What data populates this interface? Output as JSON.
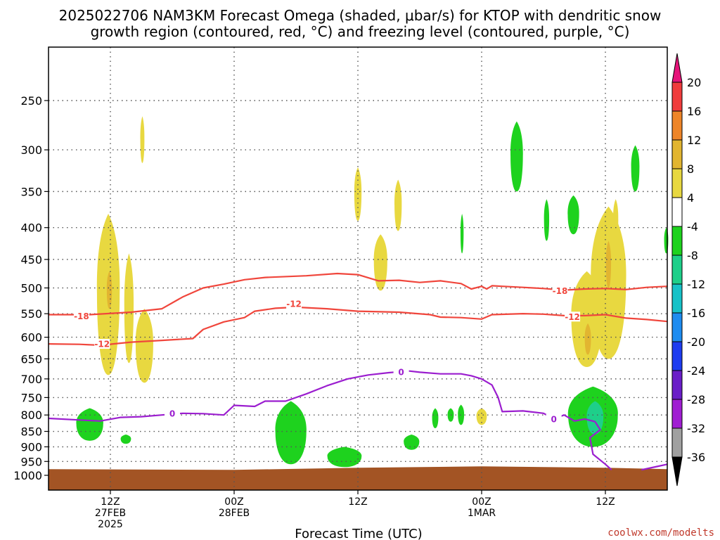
{
  "chart_data": {
    "type": "heatmap",
    "title_line1": "2025022706 NAM3KM Forecast Omega (shaded, μbar/s) for KTOP with dendritic snow",
    "title_line2": "growth region (contoured, red, °C) and freezing level (contoured, purple, °C)",
    "xlabel": "Forecast Time (UTC)",
    "credit": "coolwx.com/modelts",
    "x_range_hours": [
      0,
      60
    ],
    "y_scale": "log",
    "y_range_hPa": [
      1000,
      200
    ],
    "y_ticks": [
      250,
      300,
      350,
      400,
      450,
      500,
      550,
      600,
      650,
      700,
      750,
      800,
      850,
      900,
      950,
      1000
    ],
    "x_ticks": [
      {
        "hour": 6,
        "line1": "12Z",
        "line2": "27FEB",
        "line3": "2025"
      },
      {
        "hour": 18,
        "line1": "00Z",
        "line2": "28FEB",
        "line3": ""
      },
      {
        "hour": 30,
        "line1": "12Z",
        "line2": "",
        "line3": ""
      },
      {
        "hour": 42,
        "line1": "00Z",
        "line2": "1MAR",
        "line3": ""
      },
      {
        "hour": 54,
        "line1": "12Z",
        "line2": "",
        "line3": ""
      }
    ],
    "colorbar": {
      "labels": [
        "20",
        "16",
        "12",
        "8",
        "4",
        "-4",
        "-8",
        "-12",
        "-16",
        "-20",
        "-24",
        "-28",
        "-32",
        "-36"
      ],
      "bands": [
        {
          "lo": 16,
          "hi": 20,
          "color": "#f03c3c"
        },
        {
          "lo": 12,
          "hi": 16,
          "color": "#ee8528"
        },
        {
          "lo": 8,
          "hi": 12,
          "color": "#e2b530"
        },
        {
          "lo": 4,
          "hi": 8,
          "color": "#e8d840"
        },
        {
          "lo": -4,
          "hi": 4,
          "color": "#ffffff"
        },
        {
          "lo": -8,
          "hi": -4,
          "color": "#1ed21e"
        },
        {
          "lo": -12,
          "hi": -8,
          "color": "#1ecf8a"
        },
        {
          "lo": -16,
          "hi": -12,
          "color": "#17c2c8"
        },
        {
          "lo": -20,
          "hi": -16,
          "color": "#1e8cf0"
        },
        {
          "lo": -24,
          "hi": -20,
          "color": "#1e3cf0"
        },
        {
          "lo": -28,
          "hi": -24,
          "color": "#6a1ec8"
        },
        {
          "lo": -32,
          "hi": -28,
          "color": "#a01ed2"
        },
        {
          "lo": -36,
          "hi": -32,
          "color": "#a0a0a0"
        }
      ],
      "top_arrow_color": "#e6147a",
      "bottom_arrow_color": "#000000"
    },
    "omega_regions": [
      {
        "value": 6,
        "hour": 5.8,
        "p_top": 380,
        "p_bot": 690,
        "width_h": 2.2
      },
      {
        "value": 10,
        "hour": 5.9,
        "p_top": 470,
        "p_bot": 540,
        "width_h": 0.5
      },
      {
        "value": 6,
        "hour": 7.8,
        "p_top": 440,
        "p_bot": 660,
        "width_h": 0.9
      },
      {
        "value": 6,
        "hour": 9.3,
        "p_top": 540,
        "p_bot": 710,
        "width_h": 1.7
      },
      {
        "value": 6,
        "hour": 9.1,
        "p_top": 265,
        "p_bot": 315,
        "width_h": 0.4
      },
      {
        "value": 6,
        "hour": 30.0,
        "p_top": 320,
        "p_bot": 390,
        "width_h": 0.7
      },
      {
        "value": 6,
        "hour": 33.9,
        "p_top": 335,
        "p_bot": 405,
        "width_h": 0.7
      },
      {
        "value": 6,
        "hour": 32.2,
        "p_top": 410,
        "p_bot": 505,
        "width_h": 1.3
      },
      {
        "value": 6,
        "hour": 42.0,
        "p_top": 780,
        "p_bot": 830,
        "width_h": 1.0
      },
      {
        "value": 6,
        "hour": 52.2,
        "p_top": 470,
        "p_bot": 670,
        "width_h": 3.0
      },
      {
        "value": 10,
        "hour": 52.3,
        "p_top": 570,
        "p_bot": 640,
        "width_h": 0.6
      },
      {
        "value": 6,
        "hour": 54.3,
        "p_top": 370,
        "p_bot": 650,
        "width_h": 3.4
      },
      {
        "value": 10,
        "hour": 54.3,
        "p_top": 420,
        "p_bot": 500,
        "width_h": 0.5
      },
      {
        "value": 6,
        "hour": 55.0,
        "p_top": 360,
        "p_bot": 420,
        "width_h": 0.5
      },
      {
        "value": -6,
        "hour": 4.0,
        "p_top": 780,
        "p_bot": 880,
        "width_h": 2.6
      },
      {
        "value": -6,
        "hour": 7.5,
        "p_top": 860,
        "p_bot": 890,
        "width_h": 1.0
      },
      {
        "value": -6,
        "hour": 23.5,
        "p_top": 760,
        "p_bot": 960,
        "width_h": 3.0
      },
      {
        "value": -6,
        "hour": 28.7,
        "p_top": 900,
        "p_bot": 970,
        "width_h": 3.3
      },
      {
        "value": -6,
        "hour": 35.2,
        "p_top": 860,
        "p_bot": 910,
        "width_h": 1.5
      },
      {
        "value": -6,
        "hour": 37.5,
        "p_top": 780,
        "p_bot": 840,
        "width_h": 0.6
      },
      {
        "value": -6,
        "hour": 39.0,
        "p_top": 780,
        "p_bot": 820,
        "width_h": 0.6
      },
      {
        "value": -6,
        "hour": 40.0,
        "p_top": 770,
        "p_bot": 830,
        "width_h": 0.6
      },
      {
        "value": -6,
        "hour": 52.8,
        "p_top": 720,
        "p_bot": 900,
        "width_h": 4.8
      },
      {
        "value": -10,
        "hour": 53.0,
        "p_top": 760,
        "p_bot": 860,
        "width_h": 1.6
      },
      {
        "value": -6,
        "hour": 45.4,
        "p_top": 270,
        "p_bot": 350,
        "width_h": 1.2
      },
      {
        "value": -6,
        "hour": 48.3,
        "p_top": 360,
        "p_bot": 420,
        "width_h": 0.5
      },
      {
        "value": -6,
        "hour": 50.9,
        "p_top": 355,
        "p_bot": 410,
        "width_h": 1.1
      },
      {
        "value": -6,
        "hour": 56.9,
        "p_top": 295,
        "p_bot": 350,
        "width_h": 0.8
      },
      {
        "value": -6,
        "hour": 40.1,
        "p_top": 380,
        "p_bot": 440,
        "width_h": 0.3
      },
      {
        "value": -6,
        "hour": 59.9,
        "p_top": 400,
        "p_bot": 440,
        "width_h": 0.4
      }
    ],
    "contours": [
      {
        "name": "-18",
        "color": "#f0463c",
        "labels": [
          {
            "hour": 3.2,
            "p": 555
          },
          {
            "hour": 49.6,
            "p": 505
          }
        ],
        "points": [
          [
            0,
            552
          ],
          [
            4,
            552
          ],
          [
            8,
            547
          ],
          [
            11,
            540
          ],
          [
            13,
            517
          ],
          [
            15,
            500
          ],
          [
            17,
            493
          ],
          [
            19,
            485
          ],
          [
            21,
            481
          ],
          [
            25,
            478
          ],
          [
            28,
            474
          ],
          [
            30,
            476
          ],
          [
            32,
            487
          ],
          [
            34,
            486
          ],
          [
            36,
            490
          ],
          [
            38,
            487
          ],
          [
            40,
            492
          ],
          [
            41,
            502
          ],
          [
            42,
            497
          ],
          [
            42.5,
            502
          ],
          [
            43,
            496
          ],
          [
            44,
            497
          ],
          [
            46,
            499
          ],
          [
            48,
            501
          ],
          [
            50,
            504
          ],
          [
            52,
            502
          ],
          [
            54,
            501
          ],
          [
            56,
            503
          ],
          [
            58,
            499
          ],
          [
            60,
            497
          ]
        ]
      },
      {
        "name": "-12",
        "color": "#f0463c",
        "labels": [
          {
            "hour": 5.2,
            "p": 615
          },
          {
            "hour": 23.8,
            "p": 530
          },
          {
            "hour": 50.8,
            "p": 556
          }
        ],
        "points": [
          [
            0,
            615
          ],
          [
            3,
            616
          ],
          [
            5,
            618
          ],
          [
            8,
            611
          ],
          [
            11,
            607
          ],
          [
            14,
            603
          ],
          [
            15,
            583
          ],
          [
            17,
            567
          ],
          [
            19,
            558
          ],
          [
            20,
            545
          ],
          [
            22,
            539
          ],
          [
            24,
            537
          ],
          [
            27,
            540
          ],
          [
            30,
            545
          ],
          [
            34,
            547
          ],
          [
            37,
            552
          ],
          [
            38,
            557
          ],
          [
            40,
            558
          ],
          [
            42,
            561
          ],
          [
            43,
            552
          ],
          [
            46,
            550
          ],
          [
            48,
            551
          ],
          [
            50,
            554
          ],
          [
            52,
            554
          ],
          [
            54,
            552
          ],
          [
            56,
            559
          ],
          [
            58,
            562
          ],
          [
            60,
            566
          ]
        ]
      },
      {
        "name": "0",
        "color": "#9b1ecf",
        "labels": [
          {
            "hour": 12.0,
            "p": 795
          },
          {
            "hour": 34.2,
            "p": 682
          },
          {
            "hour": 49.0,
            "p": 812
          }
        ],
        "points": [
          [
            0,
            810
          ],
          [
            3,
            815
          ],
          [
            5,
            818
          ],
          [
            7,
            807
          ],
          [
            9,
            805
          ],
          [
            11,
            800
          ],
          [
            13,
            795
          ],
          [
            15,
            796
          ],
          [
            17,
            800
          ],
          [
            18,
            772
          ],
          [
            20,
            775
          ],
          [
            21,
            760
          ],
          [
            23,
            760
          ],
          [
            25,
            740
          ],
          [
            27,
            718
          ],
          [
            29,
            700
          ],
          [
            31,
            690
          ],
          [
            33,
            684
          ],
          [
            35,
            680
          ],
          [
            36,
            683
          ],
          [
            38,
            687
          ],
          [
            40,
            687
          ],
          [
            41,
            692
          ],
          [
            42,
            700
          ],
          [
            43,
            716
          ],
          [
            43.6,
            750
          ],
          [
            44,
            790
          ],
          [
            46,
            788
          ],
          [
            48,
            795
          ],
          [
            49,
            812
          ],
          [
            50,
            800
          ],
          [
            51,
            818
          ],
          [
            52,
            812
          ],
          [
            53,
            820
          ],
          [
            53.5,
            845
          ],
          [
            52.5,
            870
          ],
          [
            52.8,
            925
          ],
          [
            54,
            960
          ],
          [
            54.6,
            980
          ]
        ]
      },
      {
        "name": "0b",
        "color": "#9b1ecf",
        "labels": [],
        "points": [
          [
            57.5,
            980
          ],
          [
            59,
            968
          ],
          [
            60,
            960
          ]
        ]
      }
    ],
    "ground": {
      "color": "#a35424",
      "p_top": 975
    }
  }
}
